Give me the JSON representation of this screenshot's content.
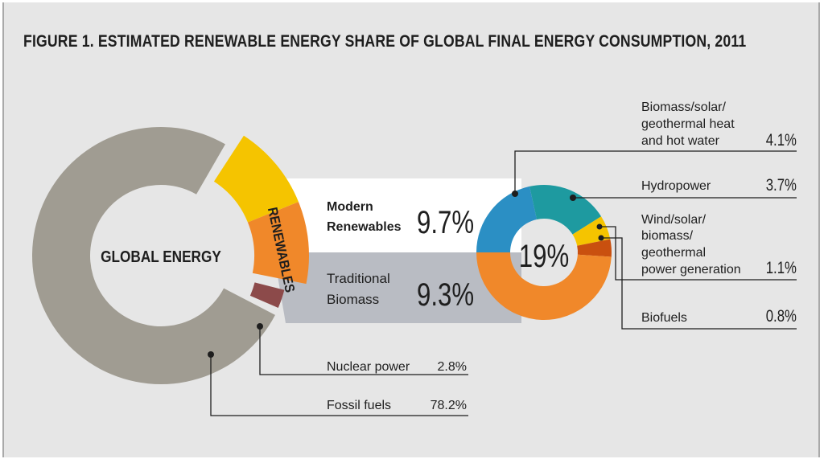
{
  "title": "FIGURE 1. ESTIMATED RENEWABLE ENERGY SHARE OF GLOBAL FINAL ENERGY CONSUMPTION, 2011",
  "colors": {
    "fossil": "#a09c92",
    "nuclear": "#8c4a4a",
    "renewables_modern": "#f5c400",
    "renewables_traditional": "#f0882a",
    "band_modern": "#ffffff",
    "band_traditional": "#b9bcc3",
    "heat": "#2b8fc4",
    "hydro": "#1e9aa0",
    "power": "#f5c400",
    "biofuels": "#c9500f",
    "trad_biomass": "#f0882a"
  },
  "labels": {
    "global_energy": "GLOBAL ENERGY",
    "renewables_vertical": "RENEWABLES",
    "modern_renewables_line1": "Modern",
    "modern_renewables_line2": "Renewables",
    "modern_renewables_value": "9.7%",
    "traditional_biomass_line1": "Traditional",
    "traditional_biomass_line2": "Biomass",
    "traditional_biomass_value": "9.3%",
    "renewables_total": "19%",
    "heat_line1": "Biomass/solar/",
    "heat_line2": "geothermal heat",
    "heat_line3": "and hot water",
    "heat_value": "4.1%",
    "hydro_label": "Hydropower",
    "hydro_value": "3.7%",
    "power_line1": "Wind/solar/",
    "power_line2": "biomass/",
    "power_line3": "geothermal",
    "power_line4": "power generation",
    "power_value": "1.1%",
    "biofuels_label": "Biofuels",
    "biofuels_value": "0.8%",
    "nuclear_label": "Nuclear power",
    "nuclear_value": "2.8%",
    "fossil_label": "Fossil fuels",
    "fossil_value": "78.2%"
  },
  "chart_data": [
    {
      "type": "pie",
      "title": "GLOBAL ENERGY",
      "categories": [
        "Fossil fuels",
        "Nuclear power",
        "Modern Renewables",
        "Traditional Biomass"
      ],
      "values": [
        78.2,
        2.8,
        9.7,
        9.3
      ],
      "unit": "%"
    },
    {
      "type": "pie",
      "title": "19%",
      "categories": [
        "Biomass/solar/geothermal heat and hot water",
        "Hydropower",
        "Wind/solar/biomass/geothermal power generation",
        "Biofuels",
        "Traditional Biomass"
      ],
      "values": [
        4.1,
        3.7,
        1.1,
        0.8,
        9.3
      ],
      "unit": "%"
    }
  ]
}
